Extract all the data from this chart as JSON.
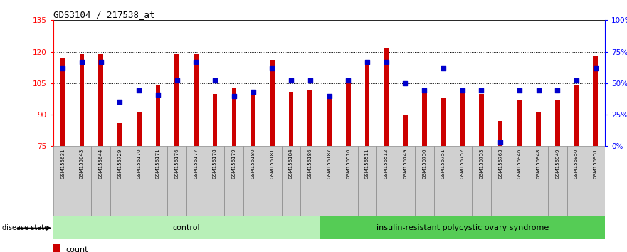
{
  "title": "GDS3104 / 217538_at",
  "samples": [
    "GSM155631",
    "GSM155643",
    "GSM155644",
    "GSM155729",
    "GSM156170",
    "GSM156171",
    "GSM156176",
    "GSM156177",
    "GSM156178",
    "GSM156179",
    "GSM156180",
    "GSM156181",
    "GSM156184",
    "GSM156186",
    "GSM156187",
    "GSM156510",
    "GSM156511",
    "GSM156512",
    "GSM156749",
    "GSM156750",
    "GSM156751",
    "GSM156752",
    "GSM156753",
    "GSM156763",
    "GSM156946",
    "GSM156948",
    "GSM156949",
    "GSM156950",
    "GSM156951"
  ],
  "counts": [
    117,
    119,
    119,
    86,
    91,
    104,
    119,
    119,
    100,
    103,
    102,
    116,
    101,
    102,
    99,
    105,
    115,
    122,
    90,
    103,
    98,
    101,
    100,
    87,
    97,
    91,
    97,
    104,
    118
  ],
  "percentile_ranks": [
    62,
    67,
    67,
    35,
    44,
    41,
    52,
    67,
    52,
    40,
    43,
    62,
    52,
    52,
    40,
    52,
    67,
    67,
    50,
    44,
    62,
    44,
    44,
    3,
    44,
    44,
    44,
    52,
    62
  ],
  "control_count": 14,
  "ylim_left": [
    75,
    135
  ],
  "ylim_right": [
    0,
    100
  ],
  "yticks_left": [
    75,
    90,
    105,
    120,
    135
  ],
  "yticks_right": [
    0,
    25,
    50,
    75,
    100
  ],
  "ytick_labels_right": [
    "0%",
    "25%",
    "50%",
    "75%",
    "100%"
  ],
  "bar_color": "#cc0000",
  "dot_color": "#0000cc",
  "control_bg": "#b8f0b8",
  "disease_bg": "#55cc55",
  "xtick_bg": "#d0d0d0",
  "bar_bottom": 75,
  "bar_width": 0.25
}
